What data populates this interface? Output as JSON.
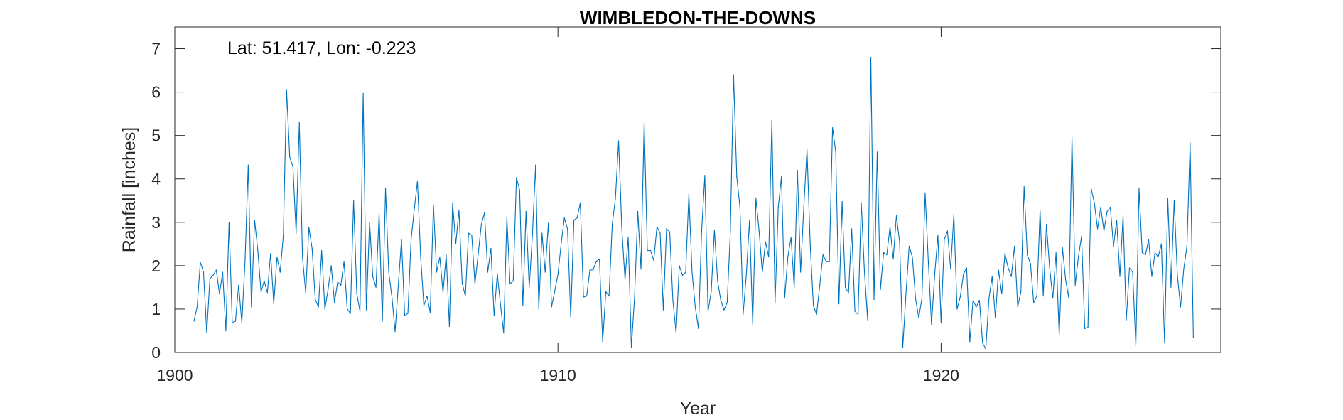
{
  "chart_data": {
    "type": "line",
    "title": "WIMBLEDON-THE-DOWNS",
    "annotation": "Lat: 51.417, Lon: -0.223",
    "xlabel": "Year",
    "ylabel": "Rainfall [inches]",
    "xlim": [
      1900,
      1927.3
    ],
    "ylim": [
      0,
      7.5
    ],
    "xticks": [
      1900,
      1910,
      1920
    ],
    "yticks": [
      0,
      1,
      2,
      3,
      4,
      5,
      6,
      7
    ],
    "grid": false,
    "series": [
      {
        "color": "#0072BD",
        "x_start": 1900.5,
        "x_step": 0.0833333,
        "values": [
          0.72,
          1.05,
          2.08,
          1.85,
          0.45,
          1.7,
          1.78,
          1.9,
          1.35,
          1.85,
          0.5,
          3.0,
          0.68,
          0.72,
          1.55,
          0.68,
          2.1,
          4.32,
          1.05,
          3.05,
          2.35,
          1.4,
          1.65,
          1.38,
          2.28,
          1.12,
          2.2,
          1.85,
          2.7,
          6.06,
          4.5,
          4.28,
          2.75,
          5.3,
          2.18,
          1.38,
          2.88,
          2.4,
          1.22,
          1.05,
          2.35,
          1.0,
          1.45,
          2.0,
          1.15,
          1.62,
          1.55,
          2.1,
          1.0,
          0.9,
          3.5,
          1.35,
          0.95,
          5.97,
          0.98,
          3.0,
          1.75,
          1.5,
          3.2,
          0.72,
          3.78,
          1.85,
          1.28,
          0.48,
          1.55,
          2.6,
          0.85,
          0.9,
          2.6,
          3.3,
          3.95,
          2.2,
          1.08,
          1.3,
          0.92,
          3.4,
          1.85,
          2.2,
          1.38,
          2.25,
          0.6,
          3.45,
          2.5,
          3.28,
          1.6,
          1.3,
          2.75,
          2.7,
          1.58,
          2.25,
          2.95,
          3.22,
          1.85,
          2.4,
          0.85,
          1.82,
          1.1,
          0.45,
          3.12,
          1.58,
          1.65,
          4.03,
          3.75,
          1.08,
          3.25,
          1.5,
          2.7,
          4.32,
          1.0,
          2.75,
          1.85,
          2.98,
          1.05,
          1.42,
          1.8,
          2.5,
          3.1,
          2.85,
          0.82,
          3.05,
          3.1,
          3.45,
          1.28,
          1.3,
          1.9,
          1.9,
          2.1,
          2.15,
          0.25,
          1.4,
          1.3,
          2.95,
          3.55,
          4.88,
          2.85,
          1.68,
          2.65,
          0.12,
          1.28,
          3.25,
          1.92,
          5.3,
          2.35,
          2.35,
          2.12,
          2.9,
          2.75,
          0.98,
          2.85,
          2.78,
          1.2,
          0.45,
          2.0,
          1.78,
          1.85,
          3.65,
          1.85,
          1.05,
          0.55,
          2.8,
          4.08,
          0.95,
          1.4,
          2.82,
          1.65,
          1.2,
          0.98,
          1.15,
          2.8,
          6.4,
          4.05,
          3.35,
          0.88,
          1.8,
          3.05,
          0.65,
          3.55,
          2.8,
          1.85,
          2.55,
          2.2,
          5.35,
          1.15,
          3.35,
          4.05,
          1.25,
          2.2,
          2.65,
          1.5,
          4.2,
          1.85,
          3.35,
          4.68,
          2.5,
          1.08,
          0.88,
          1.55,
          2.25,
          2.1,
          2.1,
          5.18,
          4.62,
          1.12,
          3.48,
          1.5,
          1.38,
          2.85,
          0.95,
          0.88,
          3.45,
          1.85,
          0.75,
          6.8,
          1.22,
          4.62,
          1.45,
          2.3,
          2.25,
          2.9,
          2.15,
          3.15,
          2.55,
          0.12,
          1.35,
          2.45,
          2.2,
          1.25,
          0.8,
          1.25,
          3.68,
          2.1,
          0.65,
          1.8,
          2.7,
          0.68,
          2.6,
          2.8,
          1.92,
          3.18,
          1.0,
          1.28,
          1.8,
          1.95,
          0.25,
          1.2,
          1.05,
          1.2,
          0.22,
          0.08,
          1.25,
          1.75,
          0.8,
          1.9,
          1.35,
          2.28,
          1.95,
          1.75,
          2.45,
          1.05,
          1.4,
          3.82,
          2.25,
          2.05,
          1.15,
          1.3,
          3.28,
          1.3,
          2.95,
          1.95,
          1.25,
          2.3,
          0.4,
          2.42,
          1.68,
          1.25,
          4.95,
          1.55,
          2.2,
          2.68,
          0.55,
          0.58,
          3.78,
          3.45,
          2.85,
          3.35,
          2.8,
          3.25,
          3.35,
          2.45,
          3.05,
          1.75,
          3.15,
          0.75,
          1.95,
          1.85,
          0.15,
          3.78,
          2.3,
          2.25,
          2.6,
          1.75,
          2.3,
          2.2,
          2.5,
          0.22,
          3.55,
          1.5,
          3.5,
          1.78,
          1.05,
          1.92,
          2.45,
          4.83,
          0.35
        ]
      }
    ]
  }
}
